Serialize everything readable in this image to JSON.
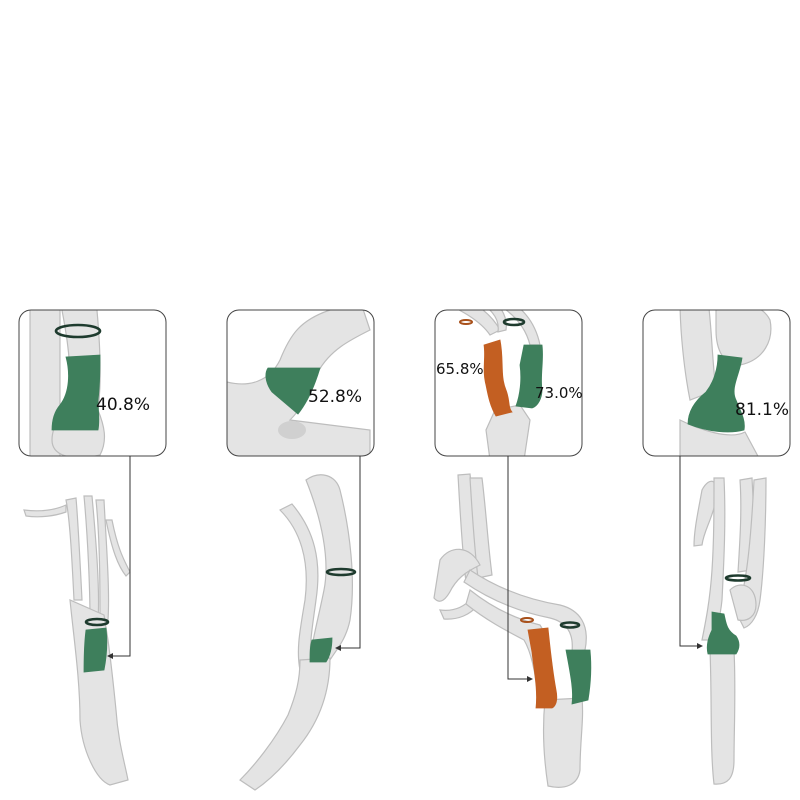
{
  "colors": {
    "vessel_fill": "#e4e4e4",
    "vessel_outline": "#bdbdbd",
    "stenosis_green": "#3e7f5c",
    "stenosis_orange": "#c35f22",
    "ring_dark": "#1e3b2e",
    "ring_orange": "#a8501a",
    "connector_line": "#333333",
    "box_border": "#444444"
  },
  "panels": [
    {
      "stenosis_labels": [
        "40.8%"
      ]
    },
    {
      "stenosis_labels": [
        "52.8%"
      ]
    },
    {
      "stenosis_labels": [
        "65.8%",
        "73.0%"
      ]
    },
    {
      "stenosis_labels": [
        "81.1%"
      ]
    }
  ]
}
